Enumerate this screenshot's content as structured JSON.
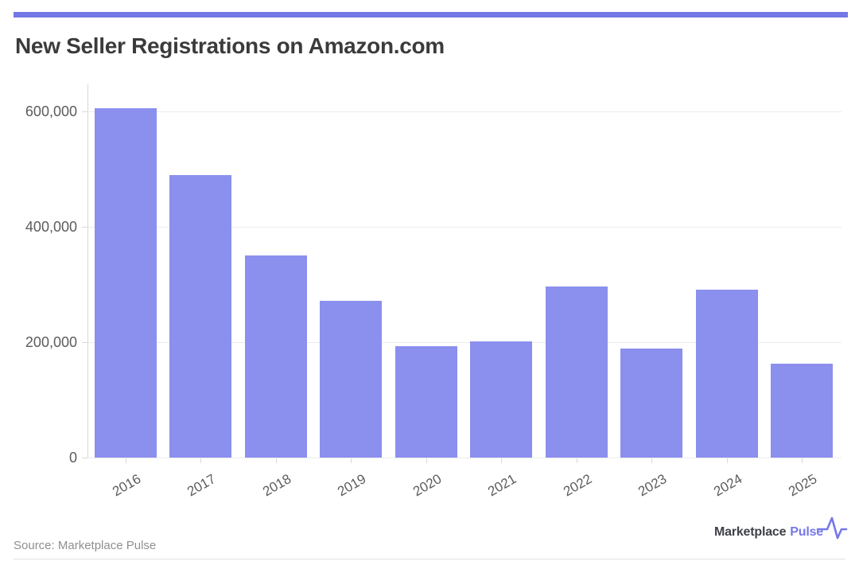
{
  "page": {
    "source_note": "Source: Marketplace Pulse",
    "brand": {
      "name_primary": "Marketplace",
      "name_accent": "Pulse",
      "icon": "pulse-line-icon"
    }
  },
  "colors": {
    "accent_bar": "#7477e5",
    "bar_fill": "#8b8fee",
    "brand_purple": "#7678e8",
    "brand_dark": "#3f4149",
    "title_text": "#3b3b3b",
    "axis_text": "#5c5c5c",
    "gridline": "#ececec",
    "axis_line": "#d9d9d9",
    "source_text": "#8f8f8f",
    "divider": "#e2e2e2"
  },
  "chart_data": {
    "type": "bar",
    "title": "New Seller Registrations on Amazon.com",
    "categories": [
      "2016",
      "2017",
      "2018",
      "2019",
      "2020",
      "2021",
      "2022",
      "2023",
      "2024",
      "2025"
    ],
    "values": [
      605000,
      490000,
      350000,
      272000,
      193000,
      202000,
      296000,
      189000,
      291000,
      163000
    ],
    "xlabel": "",
    "ylabel": "",
    "ylim": [
      0,
      645000
    ],
    "yticks": [
      0,
      200000,
      400000,
      600000
    ],
    "ytick_labels": [
      "0",
      "200,000",
      "400,000",
      "600,000"
    ],
    "grid": "horizontal-only",
    "legend": "none",
    "bar_color": "#8b8fee",
    "x_label_rotation_deg": -30
  }
}
